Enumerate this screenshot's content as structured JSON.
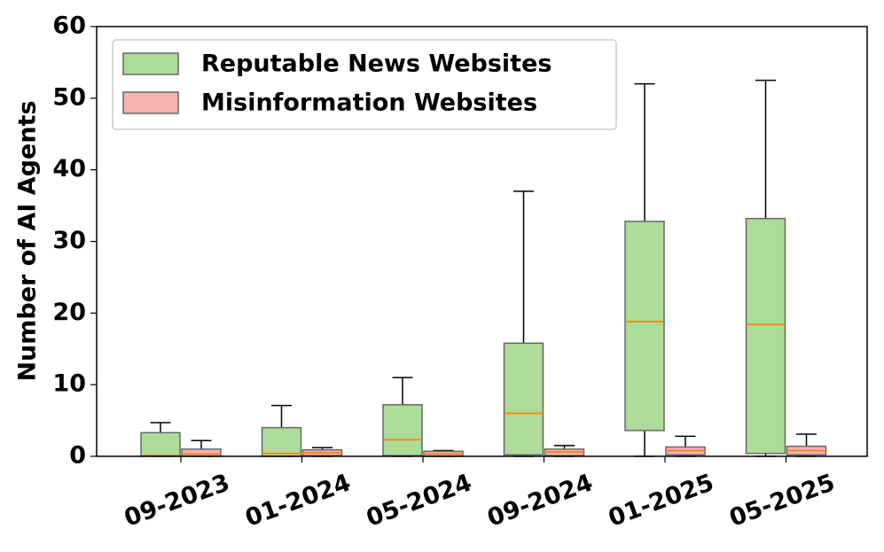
{
  "chart_data": {
    "type": "box",
    "ylabel": "Number of AI Agents",
    "categories": [
      "09-2023",
      "01-2024",
      "05-2024",
      "09-2024",
      "01-2025",
      "05-2025"
    ],
    "series": [
      {
        "name": "Reputable News Websites",
        "color": "#acdc97",
        "whislo": [
          0,
          0,
          0,
          0,
          0,
          0
        ],
        "q1": [
          0,
          0,
          0.1,
          0.2,
          3.6,
          0.4
        ],
        "median": [
          0.1,
          0.4,
          2.3,
          6.0,
          18.8,
          18.4
        ],
        "q3": [
          3.3,
          4.0,
          7.2,
          15.8,
          32.8,
          33.2
        ],
        "whishi": [
          4.7,
          7.1,
          11.0,
          37.0,
          52.0,
          52.5
        ]
      },
      {
        "name": "Misinformation Websites",
        "color": "#f4b3b1",
        "whislo": [
          0,
          0,
          0,
          0,
          0,
          0
        ],
        "q1": [
          0,
          0.1,
          0,
          0.1,
          0.2,
          0.2
        ],
        "median": [
          0.3,
          0.5,
          0.3,
          0.6,
          0.8,
          0.8
        ],
        "q3": [
          1.0,
          0.9,
          0.7,
          1.0,
          1.3,
          1.4
        ],
        "whishi": [
          2.2,
          1.2,
          0.8,
          1.5,
          2.8,
          3.1
        ]
      }
    ],
    "median_color": "#ff7f0e",
    "ylim": [
      0,
      60
    ],
    "yticks": [
      0,
      10,
      20,
      30,
      40,
      50,
      60
    ],
    "legend": "upper left"
  }
}
